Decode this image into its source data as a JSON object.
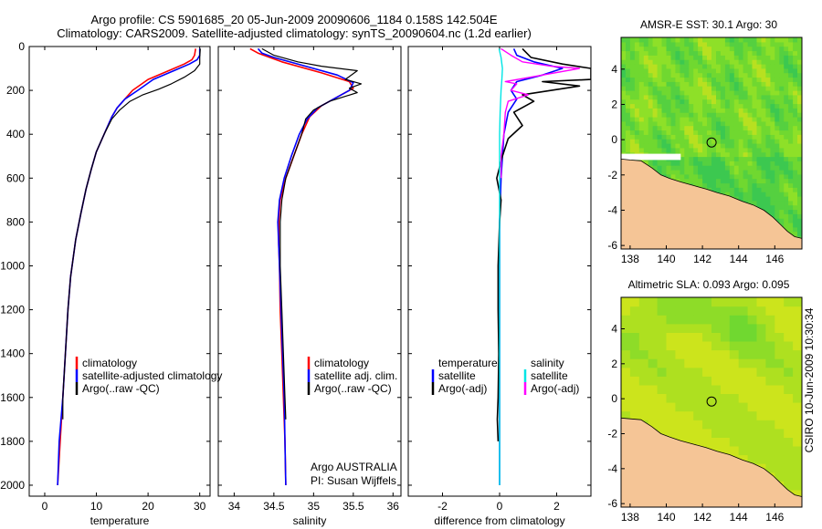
{
  "header": {
    "line1": "Argo profile: CS 5901685_20 05-Jun-2009 20090606_1184 0.158S 142.504E",
    "line2": "Climatology: CARS2009. Satellite-adjusted climatology: synTS_20090604.nc (1.2d earlier)"
  },
  "side_label": "CSIRO 10-Jun-2009 10:30:34",
  "colors": {
    "climatology": "#ff0000",
    "satellite": "#0000ff",
    "argo": "#000000",
    "satellite_salinity": "#00e5e5",
    "argo_salinity": "#ff00ff",
    "land": "#f5c596",
    "ocean_base": "#66cc44"
  },
  "chart_data": [
    {
      "id": "temperature",
      "type": "line",
      "xlabel": "temperature",
      "xlim": [
        -3,
        32
      ],
      "ylim": [
        2050,
        0
      ],
      "xticks": [
        0,
        10,
        20,
        30
      ],
      "yticks": [
        0,
        200,
        400,
        600,
        800,
        1000,
        1200,
        1400,
        1600,
        1800,
        2000
      ],
      "legend": [
        "climatology",
        "satellite-adjusted climatology",
        "Argo(..raw -QC)"
      ],
      "series": [
        {
          "name": "climatology",
          "color": "#ff0000",
          "width": 1.6,
          "points": [
            [
              29.2,
              10
            ],
            [
              29,
              40
            ],
            [
              28.5,
              60
            ],
            [
              27,
              80
            ],
            [
              24,
              110
            ],
            [
              20,
              150
            ],
            [
              17,
              200
            ],
            [
              15.5,
              240
            ],
            [
              14,
              280
            ],
            [
              13,
              320
            ],
            [
              11.5,
              400
            ],
            [
              10,
              480
            ],
            [
              9,
              560
            ],
            [
              8,
              650
            ],
            [
              7,
              760
            ],
            [
              6,
              880
            ],
            [
              5,
              1050
            ],
            [
              4.5,
              1200
            ],
            [
              4,
              1400
            ],
            [
              3.5,
              1600
            ],
            [
              3,
              1800
            ],
            [
              2.5,
              2000
            ]
          ]
        },
        {
          "name": "satellite",
          "color": "#0000ff",
          "width": 1.6,
          "points": [
            [
              30,
              10
            ],
            [
              30,
              40
            ],
            [
              29.5,
              60
            ],
            [
              28,
              80
            ],
            [
              25,
              110
            ],
            [
              21,
              150
            ],
            [
              18,
              200
            ],
            [
              15.5,
              240
            ],
            [
              14,
              280
            ],
            [
              13,
              320
            ],
            [
              11.5,
              400
            ],
            [
              10,
              480
            ],
            [
              9,
              560
            ],
            [
              8,
              650
            ],
            [
              7,
              760
            ],
            [
              6,
              880
            ],
            [
              5,
              1050
            ],
            [
              4.5,
              1200
            ],
            [
              4,
              1400
            ],
            [
              3.5,
              1600
            ],
            [
              2.8,
              1800
            ],
            [
              2.5,
              2000
            ]
          ]
        },
        {
          "name": "Argo",
          "color": "#000000",
          "width": 1.2,
          "points": [
            [
              30.1,
              10
            ],
            [
              30,
              50
            ],
            [
              30,
              80
            ],
            [
              29,
              110
            ],
            [
              27,
              140
            ],
            [
              24.5,
              170
            ],
            [
              22,
              195
            ],
            [
              19,
              220
            ],
            [
              16.5,
              250
            ],
            [
              14.5,
              290
            ],
            [
              13,
              330
            ],
            [
              11.5,
              400
            ],
            [
              10,
              480
            ],
            [
              9,
              560
            ],
            [
              8,
              650
            ],
            [
              7,
              760
            ],
            [
              6,
              880
            ],
            [
              5,
              1050
            ],
            [
              4.5,
              1200
            ],
            [
              4,
              1400
            ],
            [
              3.5,
              1600
            ],
            [
              3.5,
              1700
            ]
          ]
        }
      ]
    },
    {
      "id": "salinity",
      "type": "line",
      "xlabel": "salinity",
      "xlim": [
        33.8,
        36.1
      ],
      "ylim": [
        2050,
        0
      ],
      "xticks": [
        34,
        34.5,
        35,
        35.5,
        36
      ],
      "legend": [
        "climatology",
        "satellite adj. clim.",
        "Argo(..raw -QC)"
      ],
      "annotations": [
        "Argo AUSTRALIA",
        "PI: Susan Wijffels"
      ],
      "series": [
        {
          "name": "climatology",
          "color": "#ff0000",
          "width": 1.6,
          "points": [
            [
              34.2,
              10
            ],
            [
              34.3,
              30
            ],
            [
              34.6,
              70
            ],
            [
              35.1,
              120
            ],
            [
              35.45,
              160
            ],
            [
              35.5,
              190
            ],
            [
              35.3,
              230
            ],
            [
              35.1,
              270
            ],
            [
              34.95,
              320
            ],
            [
              34.85,
              400
            ],
            [
              34.75,
              500
            ],
            [
              34.65,
              600
            ],
            [
              34.58,
              700
            ],
            [
              34.56,
              800
            ],
            [
              34.56,
              900
            ],
            [
              34.57,
              1000
            ],
            [
              34.58,
              1200
            ],
            [
              34.6,
              1400
            ],
            [
              34.62,
              1600
            ],
            [
              34.64,
              1800
            ],
            [
              34.65,
              2000
            ]
          ]
        },
        {
          "name": "satellite",
          "color": "#0000ff",
          "width": 1.6,
          "points": [
            [
              34.3,
              10
            ],
            [
              34.35,
              30
            ],
            [
              34.5,
              50
            ],
            [
              34.9,
              90
            ],
            [
              35.3,
              130
            ],
            [
              35.5,
              165
            ],
            [
              35.45,
              200
            ],
            [
              35.25,
              240
            ],
            [
              35.05,
              280
            ],
            [
              34.92,
              330
            ],
            [
              34.82,
              400
            ],
            [
              34.72,
              500
            ],
            [
              34.63,
              600
            ],
            [
              34.57,
              700
            ],
            [
              34.55,
              800
            ],
            [
              34.56,
              900
            ],
            [
              34.57,
              1000
            ],
            [
              34.59,
              1200
            ],
            [
              34.61,
              1400
            ],
            [
              34.63,
              1600
            ],
            [
              34.64,
              1800
            ],
            [
              34.65,
              2000
            ]
          ]
        },
        {
          "name": "Argo",
          "color": "#000000",
          "width": 1.2,
          "points": [
            [
              34.35,
              10
            ],
            [
              34.5,
              40
            ],
            [
              34.8,
              70
            ],
            [
              35.1,
              90
            ],
            [
              35.55,
              110
            ],
            [
              35.4,
              150
            ],
            [
              35.6,
              170
            ],
            [
              35.45,
              190
            ],
            [
              35.55,
              210
            ],
            [
              35.2,
              250
            ],
            [
              35.0,
              290
            ],
            [
              34.9,
              330
            ],
            [
              34.85,
              400
            ],
            [
              34.75,
              500
            ],
            [
              34.65,
              600
            ],
            [
              34.6,
              700
            ],
            [
              34.58,
              800
            ],
            [
              34.58,
              900
            ],
            [
              34.58,
              1000
            ],
            [
              34.6,
              1200
            ],
            [
              34.62,
              1400
            ],
            [
              34.64,
              1600
            ],
            [
              34.65,
              1700
            ]
          ]
        }
      ]
    },
    {
      "id": "difference",
      "type": "line",
      "xlabel": "difference from climatology",
      "xlim": [
        -3.2,
        3.2
      ],
      "ylim": [
        2050,
        0
      ],
      "xticks": [
        -2,
        0,
        2
      ],
      "legend_left": [
        "temperature",
        "satellite",
        "Argo(-adj)"
      ],
      "legend_right": [
        "salinity",
        "satellite",
        "Argo(-adj)"
      ],
      "series": [
        {
          "name": "temperature satellite",
          "color": "#0000ff",
          "width": 1.6,
          "points": [
            [
              0.5,
              10
            ],
            [
              0.6,
              40
            ],
            [
              1.2,
              70
            ],
            [
              2.2,
              100
            ],
            [
              1.5,
              130
            ],
            [
              0.6,
              160
            ],
            [
              0.4,
              200
            ],
            [
              0.6,
              240
            ],
            [
              0.3,
              300
            ],
            [
              0.15,
              400
            ],
            [
              0.05,
              600
            ],
            [
              0,
              800
            ],
            [
              0,
              1200
            ],
            [
              0,
              1600
            ],
            [
              0,
              2000
            ]
          ]
        },
        {
          "name": "temperature Argo",
          "color": "#000000",
          "width": 1.6,
          "points": [
            [
              0.8,
              10
            ],
            [
              1.1,
              50
            ],
            [
              2.2,
              80
            ],
            [
              3.2,
              100
            ],
            [
              3.2,
              150
            ],
            [
              1.5,
              160
            ],
            [
              2.8,
              180
            ],
            [
              0.8,
              220
            ],
            [
              1.2,
              250
            ],
            [
              0.5,
              300
            ],
            [
              0.8,
              360
            ],
            [
              0.3,
              420
            ],
            [
              0.1,
              500
            ],
            [
              -0.1,
              600
            ],
            [
              0.05,
              700
            ],
            [
              0,
              800
            ],
            [
              -0.05,
              1000
            ],
            [
              -0.05,
              1200
            ],
            [
              -0.03,
              1400
            ],
            [
              -0.05,
              1600
            ],
            [
              -0.08,
              1700
            ],
            [
              -0.05,
              1800
            ]
          ]
        },
        {
          "name": "salinity Argo",
          "color": "#ff00ff",
          "width": 1.4,
          "points": [
            [
              0.05,
              10
            ],
            [
              0.4,
              40
            ],
            [
              0.8,
              70
            ],
            [
              1.8,
              90
            ],
            [
              2.8,
              100
            ],
            [
              1.5,
              130
            ],
            [
              0.2,
              160
            ],
            [
              0.6,
              170
            ],
            [
              0.4,
              200
            ],
            [
              1.0,
              220
            ],
            [
              0.3,
              250
            ],
            [
              0.2,
              300
            ],
            [
              0.15,
              400
            ],
            [
              0.05,
              500
            ],
            [
              0.05,
              600
            ]
          ]
        },
        {
          "name": "salinity satellite",
          "color": "#00e5e5",
          "width": 1.4,
          "points": [
            [
              -0.02,
              10
            ],
            [
              0.05,
              50
            ],
            [
              0.1,
              100
            ],
            [
              0.08,
              150
            ],
            [
              0.05,
              200
            ],
            [
              0.02,
              300
            ],
            [
              0,
              400
            ],
            [
              0,
              600
            ],
            [
              0,
              800
            ],
            [
              0,
              1200
            ],
            [
              0,
              1600
            ],
            [
              0,
              2000
            ]
          ]
        }
      ]
    },
    {
      "id": "sst_map",
      "type": "heatmap",
      "title": "AMSR-E SST: 30.1 Argo: 30",
      "xlim": [
        137.5,
        147.5
      ],
      "ylim": [
        -6.2,
        5.8
      ],
      "xticks": [
        138,
        140,
        142,
        144,
        146
      ],
      "yticks": [
        -6,
        -4,
        -2,
        0,
        2,
        4
      ],
      "argo_position": [
        142.504,
        -0.158
      ]
    },
    {
      "id": "sla_map",
      "type": "heatmap",
      "title": "Altimetric SLA: 0.093 Argo: 0.095",
      "xlim": [
        137.5,
        147.5
      ],
      "ylim": [
        -6.2,
        5.8
      ],
      "xticks": [
        138,
        140,
        142,
        144,
        146
      ],
      "yticks": [
        -6,
        -4,
        -2,
        0,
        2,
        4
      ],
      "argo_position": [
        142.504,
        -0.158
      ]
    }
  ]
}
